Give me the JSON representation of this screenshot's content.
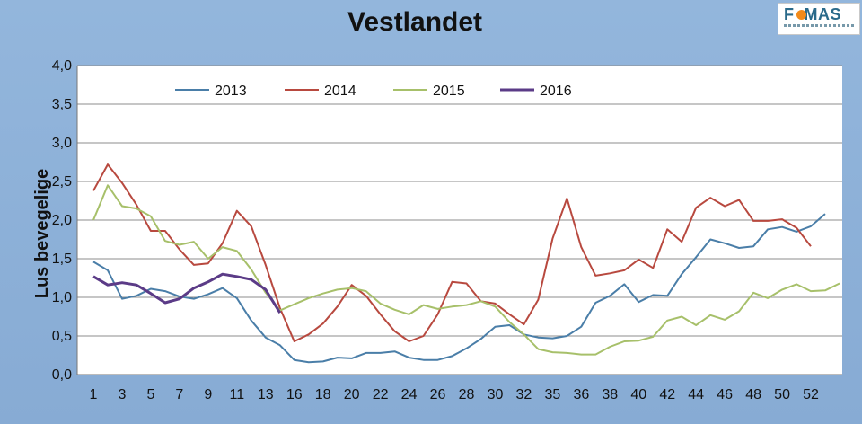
{
  "chart_data": {
    "type": "line",
    "title": "Vestlandet",
    "ylabel": "Lus bevegelige",
    "xlabel": "",
    "ylim": [
      0,
      4
    ],
    "y_ticks": [
      "0,0",
      "0,5",
      "1,0",
      "1,5",
      "2,0",
      "2,5",
      "3,0",
      "3,5",
      "4,0"
    ],
    "x_ticks": [
      "1",
      "3",
      "5",
      "7",
      "9",
      "11",
      "13",
      "16",
      "18",
      "20",
      "22",
      "24",
      "26",
      "28",
      "30",
      "32",
      "35",
      "36",
      "38",
      "40",
      "42",
      "44",
      "46",
      "48",
      "50",
      "52"
    ],
    "x_positions": [
      "1",
      "2",
      "3",
      "4",
      "5",
      "6",
      "7",
      "8",
      "9",
      "10",
      "11",
      "12",
      "13",
      "14",
      "15",
      "16",
      "17",
      "18",
      "19",
      "20",
      "21",
      "22",
      "23",
      "24",
      "25",
      "26",
      "27",
      "28",
      "29",
      "30",
      "31",
      "32",
      "33",
      "34",
      "35",
      "36",
      "37",
      "38",
      "39",
      "40",
      "41",
      "42",
      "43",
      "44",
      "45",
      "46",
      "47",
      "48",
      "49",
      "50",
      "51",
      "52",
      "53"
    ],
    "legend_position": "top",
    "grid": true,
    "series": [
      {
        "name": "2013",
        "color": "#4a7ea8",
        "values": [
          1.46,
          1.35,
          0.98,
          1.02,
          1.11,
          1.08,
          1.01,
          0.98,
          1.04,
          1.12,
          0.99,
          0.7,
          0.48,
          0.38,
          0.19,
          0.16,
          0.17,
          0.22,
          0.21,
          0.28,
          0.28,
          0.3,
          0.22,
          0.19,
          0.19,
          0.24,
          0.34,
          0.46,
          0.62,
          0.64,
          0.52,
          0.48,
          0.47,
          0.5,
          0.62,
          0.93,
          1.02,
          1.17,
          0.94,
          1.03,
          1.02,
          1.3,
          1.52,
          1.75,
          1.7,
          1.64,
          1.66,
          1.88,
          1.91,
          1.85,
          1.92,
          2.08,
          null
        ]
      },
      {
        "name": "2014",
        "color": "#b8493f",
        "values": [
          2.38,
          2.72,
          2.48,
          2.2,
          1.86,
          1.86,
          1.62,
          1.42,
          1.44,
          1.7,
          2.12,
          1.92,
          1.42,
          0.86,
          0.43,
          0.52,
          0.66,
          0.88,
          1.16,
          1.02,
          0.78,
          0.56,
          0.43,
          0.5,
          0.78,
          1.2,
          1.18,
          0.95,
          0.92,
          0.78,
          0.65,
          0.97,
          1.76,
          2.28,
          1.65,
          1.28,
          1.31,
          1.35,
          1.49,
          1.38,
          1.88,
          1.72,
          2.16,
          2.29,
          2.18,
          2.26,
          1.99,
          1.99,
          2.01,
          1.9,
          1.66,
          null,
          null
        ]
      },
      {
        "name": "2015",
        "color": "#a7c06a",
        "values": [
          2.0,
          2.45,
          2.18,
          2.15,
          2.05,
          1.73,
          1.68,
          1.72,
          1.5,
          1.65,
          1.6,
          1.36,
          1.06,
          0.83,
          0.91,
          0.99,
          1.05,
          1.1,
          1.12,
          1.08,
          0.92,
          0.84,
          0.78,
          0.9,
          0.85,
          0.88,
          0.9,
          0.95,
          0.88,
          0.68,
          0.52,
          0.33,
          0.29,
          0.28,
          0.26,
          0.26,
          0.36,
          0.43,
          0.44,
          0.49,
          0.7,
          0.75,
          0.64,
          0.77,
          0.71,
          0.82,
          1.06,
          0.99,
          1.1,
          1.17,
          1.08,
          1.09,
          1.18
        ]
      },
      {
        "name": "2016",
        "color": "#5b3b87",
        "values": [
          1.27,
          1.16,
          1.19,
          1.16,
          1.05,
          0.93,
          0.98,
          1.12,
          1.2,
          1.3,
          1.27,
          1.23,
          1.1,
          0.8,
          null,
          null,
          null,
          null,
          null,
          null,
          null,
          null,
          null,
          null,
          null,
          null,
          null,
          null,
          null,
          null,
          null,
          null,
          null,
          null,
          null,
          null,
          null,
          null,
          null,
          null,
          null,
          null,
          null,
          null,
          null,
          null,
          null,
          null,
          null,
          null,
          null,
          null,
          null
        ]
      }
    ]
  },
  "logo": {
    "text": "FoMAS"
  }
}
